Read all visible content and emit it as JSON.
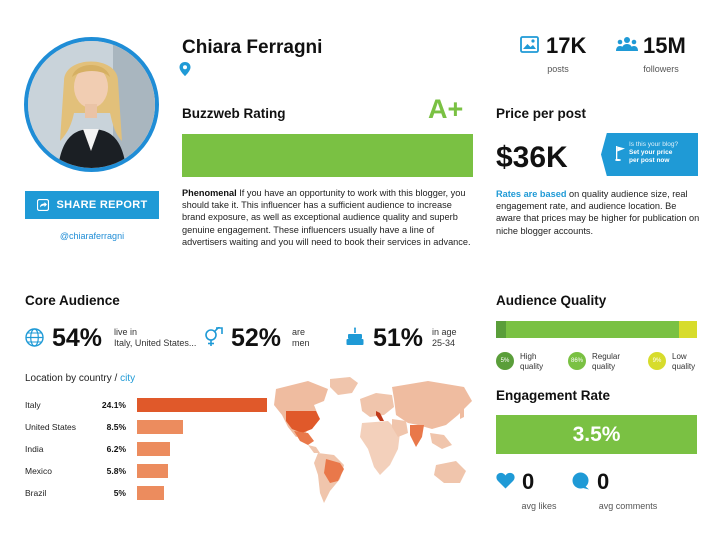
{
  "profile": {
    "name": "Chiara Ferragni",
    "handle": "@chiaraferragni",
    "share_label": "SHARE REPORT"
  },
  "stats": {
    "posts_value": "17K",
    "posts_label": "posts",
    "followers_value": "15M",
    "followers_label": "followers"
  },
  "rating": {
    "title": "Buzzweb Rating",
    "grade": "A+",
    "lead": "Phenomenal",
    "text": " If you have an opportunity to work with this blogger, you should take it. This influencer has a sufficient audience to increase brand exposure, as well as exceptional audience quality and superb genuine engagement. These influencers usually have a line of advertisers waiting and you will need to book their services in advance."
  },
  "price": {
    "title": "Price per post",
    "value": "$36K",
    "badge_line1": "Is this your blog?",
    "badge_line2": "Set your price",
    "badge_line3": "per post now",
    "note_lead": "Rates are based",
    "note_text": " on quality audience size, real engagement rate, and audience location. Be aware that prices may be higher for publication on niche blogger accounts."
  },
  "core_audience": {
    "title": "Core Audience",
    "location_pct": "54%",
    "location_lbl1": "live in",
    "location_lbl2": "Italy, United States...",
    "gender_pct": "52%",
    "gender_lbl1": "are",
    "gender_lbl2": "men",
    "age_pct": "51%",
    "age_lbl1": "in age",
    "age_lbl2": "25-34"
  },
  "location": {
    "title_prefix": "Location by country / ",
    "title_city": "city",
    "countries": [
      {
        "name": "Italy",
        "pct": "24.1%",
        "value": 24.1
      },
      {
        "name": "United States",
        "pct": "8.5%",
        "value": 8.5
      },
      {
        "name": "India",
        "pct": "6.2%",
        "value": 6.2
      },
      {
        "name": "Mexico",
        "pct": "5.8%",
        "value": 5.8
      },
      {
        "name": "Brazil",
        "pct": "5%",
        "value": 5
      }
    ]
  },
  "audience_quality": {
    "title": "Audience Quality",
    "segments": [
      {
        "pct": "5%",
        "value": 5,
        "label1": "High",
        "label2": "quality",
        "color": "#5a9e3a"
      },
      {
        "pct": "86%",
        "value": 86,
        "label1": "Regular",
        "label2": "quality",
        "color": "#7ac143"
      },
      {
        "pct": "9%",
        "value": 9,
        "label1": "Low",
        "label2": "quality",
        "color": "#d7dc2c"
      }
    ]
  },
  "engagement": {
    "title": "Engagement Rate",
    "rate": "3.5%",
    "likes_value": "0",
    "likes_label": "avg likes",
    "comments_value": "0",
    "comments_label": "avg comments"
  },
  "colors": {
    "accent_blue": "#1f9ad6",
    "accent_green": "#7ac143",
    "bar_dark": "#e0592a",
    "bar_light": "#ec8c5e"
  }
}
